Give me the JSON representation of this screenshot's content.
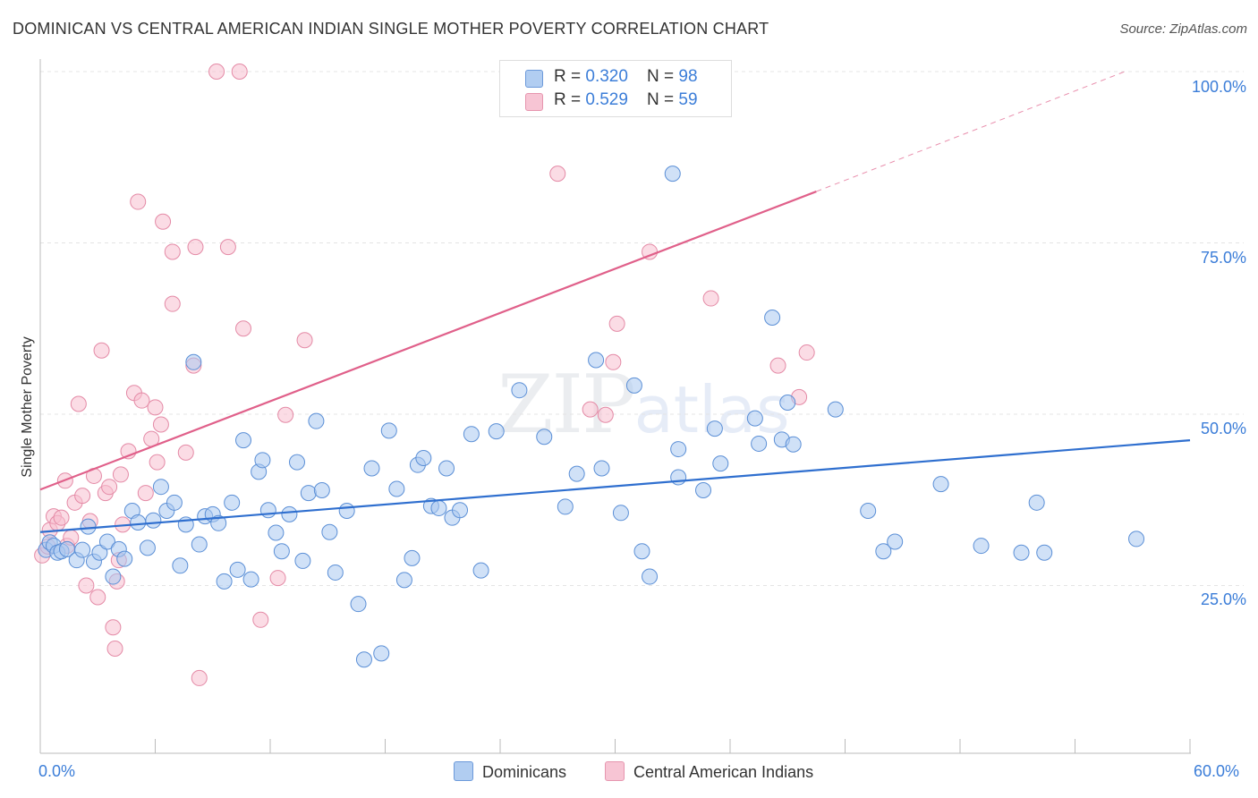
{
  "header": {
    "title": "DOMINICAN VS CENTRAL AMERICAN INDIAN SINGLE MOTHER POVERTY CORRELATION CHART",
    "source": "Source: ZipAtlas.com"
  },
  "watermark": {
    "zip": "ZIP",
    "atlas": "atlas"
  },
  "colors": {
    "dominicans_fill": "#a9c8f0",
    "dominicans_stroke": "#5b8fd6",
    "dominicans_line": "#2f6fcf",
    "cai_fill": "#f7bfd0",
    "cai_stroke": "#e48aa6",
    "cai_line": "#e0608a",
    "tick_label": "#3b7dd8",
    "grid": "#e4e4e4"
  },
  "legend": {
    "series1": {
      "r_label": "R = ",
      "r_value": "0.320",
      "n_label": "N = ",
      "n_value": "98"
    },
    "series2": {
      "r_label": "R = ",
      "r_value": "0.529",
      "n_label": "N = ",
      "n_value": "59"
    }
  },
  "chart_data": {
    "type": "scatter",
    "title": "DOMINICAN VS CENTRAL AMERICAN INDIAN SINGLE MOTHER POVERTY CORRELATION CHART",
    "xlabel": "",
    "ylabel": "Single Mother Poverty",
    "x_tick_labels": [
      "0.0%",
      "60.0%"
    ],
    "y_tick_labels": [
      "25.0%",
      "50.0%",
      "75.0%",
      "100.0%"
    ],
    "xlim": [
      0,
      60
    ],
    "ylim": [
      0,
      103
    ],
    "grid": true,
    "legend_placement": "top-center",
    "series": [
      {
        "name": "Dominicans",
        "r": 0.32,
        "n": 98,
        "trend": {
          "x": [
            0,
            60
          ],
          "y": [
            32.8,
            46.2
          ]
        },
        "points": [
          [
            0.3,
            30.2
          ],
          [
            0.5,
            31.3
          ],
          [
            0.7,
            30.8
          ],
          [
            0.9,
            29.8
          ],
          [
            1.1,
            30.0
          ],
          [
            1.4,
            30.3
          ],
          [
            1.9,
            28.7
          ],
          [
            2.2,
            30.2
          ],
          [
            2.5,
            33.6
          ],
          [
            2.8,
            28.5
          ],
          [
            3.1,
            29.8
          ],
          [
            3.5,
            31.4
          ],
          [
            3.8,
            26.3
          ],
          [
            4.1,
            30.3
          ],
          [
            4.4,
            28.9
          ],
          [
            4.8,
            35.9
          ],
          [
            5.1,
            34.2
          ],
          [
            5.6,
            30.5
          ],
          [
            5.9,
            34.5
          ],
          [
            6.3,
            39.4
          ],
          [
            6.6,
            35.9
          ],
          [
            7.0,
            37.1
          ],
          [
            7.3,
            27.9
          ],
          [
            7.6,
            33.9
          ],
          [
            8.0,
            57.6
          ],
          [
            8.3,
            31.0
          ],
          [
            8.6,
            35.1
          ],
          [
            9.0,
            35.4
          ],
          [
            9.3,
            34.1
          ],
          [
            9.6,
            25.6
          ],
          [
            10.0,
            37.1
          ],
          [
            10.3,
            27.3
          ],
          [
            10.6,
            46.2
          ],
          [
            11.0,
            25.9
          ],
          [
            11.4,
            41.6
          ],
          [
            11.6,
            43.3
          ],
          [
            11.9,
            36.0
          ],
          [
            12.3,
            32.7
          ],
          [
            12.6,
            30.0
          ],
          [
            13.0,
            35.4
          ],
          [
            13.4,
            43.0
          ],
          [
            13.7,
            28.6
          ],
          [
            14.0,
            38.5
          ],
          [
            14.4,
            49.0
          ],
          [
            14.7,
            38.9
          ],
          [
            15.1,
            32.8
          ],
          [
            15.4,
            26.9
          ],
          [
            16.0,
            35.9
          ],
          [
            16.6,
            22.3
          ],
          [
            16.9,
            14.2
          ],
          [
            17.3,
            42.1
          ],
          [
            17.8,
            15.1
          ],
          [
            18.2,
            47.6
          ],
          [
            18.6,
            39.1
          ],
          [
            19.0,
            25.8
          ],
          [
            19.4,
            29.0
          ],
          [
            19.7,
            42.6
          ],
          [
            20.0,
            43.6
          ],
          [
            20.4,
            36.6
          ],
          [
            20.8,
            36.3
          ],
          [
            21.2,
            42.1
          ],
          [
            21.5,
            34.9
          ],
          [
            21.9,
            36.0
          ],
          [
            22.5,
            47.1
          ],
          [
            23.0,
            27.2
          ],
          [
            23.8,
            47.5
          ],
          [
            25.0,
            53.5
          ],
          [
            26.3,
            46.7
          ],
          [
            27.4,
            36.5
          ],
          [
            28.0,
            41.3
          ],
          [
            29.0,
            57.9
          ],
          [
            29.3,
            42.1
          ],
          [
            30.3,
            35.6
          ],
          [
            31.0,
            54.2
          ],
          [
            31.4,
            30.0
          ],
          [
            31.8,
            26.3
          ],
          [
            33.0,
            85.1
          ],
          [
            33.3,
            44.9
          ],
          [
            33.3,
            40.8
          ],
          [
            34.6,
            38.9
          ],
          [
            35.2,
            47.9
          ],
          [
            35.5,
            42.8
          ],
          [
            37.3,
            49.4
          ],
          [
            37.5,
            45.7
          ],
          [
            38.2,
            64.1
          ],
          [
            38.7,
            46.3
          ],
          [
            39.0,
            51.7
          ],
          [
            39.3,
            45.6
          ],
          [
            41.5,
            50.7
          ],
          [
            43.2,
            35.9
          ],
          [
            44.0,
            30.0
          ],
          [
            44.6,
            31.4
          ],
          [
            47.0,
            39.8
          ],
          [
            49.1,
            30.8
          ],
          [
            51.2,
            29.8
          ],
          [
            52.0,
            37.1
          ],
          [
            52.4,
            29.8
          ],
          [
            57.2,
            31.8
          ]
        ]
      },
      {
        "name": "Central American Indians",
        "r": 0.529,
        "n": 59,
        "trend": {
          "x": [
            0,
            40.5
          ],
          "y": [
            39.0,
            82.5
          ]
        },
        "trend_extension": {
          "x": [
            40.5,
            56.6
          ],
          "y": [
            82.5,
            100.0
          ]
        },
        "points": [
          [
            0.1,
            29.4
          ],
          [
            0.4,
            30.7
          ],
          [
            0.5,
            33.1
          ],
          [
            0.7,
            35.1
          ],
          [
            0.9,
            34.1
          ],
          [
            1.1,
            34.9
          ],
          [
            1.3,
            40.3
          ],
          [
            1.4,
            30.8
          ],
          [
            1.6,
            32.0
          ],
          [
            1.8,
            37.1
          ],
          [
            2.0,
            51.5
          ],
          [
            2.2,
            38.1
          ],
          [
            2.4,
            25.0
          ],
          [
            2.6,
            34.4
          ],
          [
            2.8,
            41.0
          ],
          [
            3.0,
            23.3
          ],
          [
            3.2,
            59.3
          ],
          [
            3.4,
            38.5
          ],
          [
            3.6,
            39.4
          ],
          [
            3.8,
            18.9
          ],
          [
            3.9,
            15.8
          ],
          [
            4.0,
            25.6
          ],
          [
            4.1,
            28.7
          ],
          [
            4.2,
            41.2
          ],
          [
            4.3,
            33.9
          ],
          [
            4.6,
            44.6
          ],
          [
            4.9,
            53.1
          ],
          [
            5.1,
            81.0
          ],
          [
            5.3,
            52.0
          ],
          [
            5.5,
            38.5
          ],
          [
            5.8,
            46.4
          ],
          [
            6.0,
            51.0
          ],
          [
            6.1,
            43.0
          ],
          [
            6.3,
            48.5
          ],
          [
            6.4,
            78.1
          ],
          [
            6.9,
            66.1
          ],
          [
            6.9,
            73.7
          ],
          [
            7.6,
            44.4
          ],
          [
            8.0,
            57.1
          ],
          [
            8.1,
            74.4
          ],
          [
            8.3,
            11.5
          ],
          [
            9.2,
            100.0
          ],
          [
            9.8,
            74.4
          ],
          [
            10.4,
            100.0
          ],
          [
            10.6,
            62.5
          ],
          [
            11.5,
            20.0
          ],
          [
            12.4,
            26.1
          ],
          [
            12.8,
            49.9
          ],
          [
            13.8,
            60.8
          ],
          [
            27.0,
            85.1
          ],
          [
            28.7,
            50.7
          ],
          [
            29.5,
            49.9
          ],
          [
            29.9,
            57.6
          ],
          [
            30.1,
            63.2
          ],
          [
            31.8,
            73.7
          ],
          [
            35.0,
            66.9
          ],
          [
            38.5,
            57.1
          ],
          [
            40.0,
            59.0
          ],
          [
            39.6,
            52.5
          ]
        ]
      }
    ]
  },
  "axes": {
    "ylabel": "Single Mother Poverty",
    "x_min_label": "0.0%",
    "x_max_label": "60.0%",
    "y_ticks": {
      "t25": "25.0%",
      "t50": "50.0%",
      "t75": "75.0%",
      "t100": "100.0%"
    }
  },
  "bottom_legend": {
    "series1": "Dominicans",
    "series2": "Central American Indians"
  }
}
